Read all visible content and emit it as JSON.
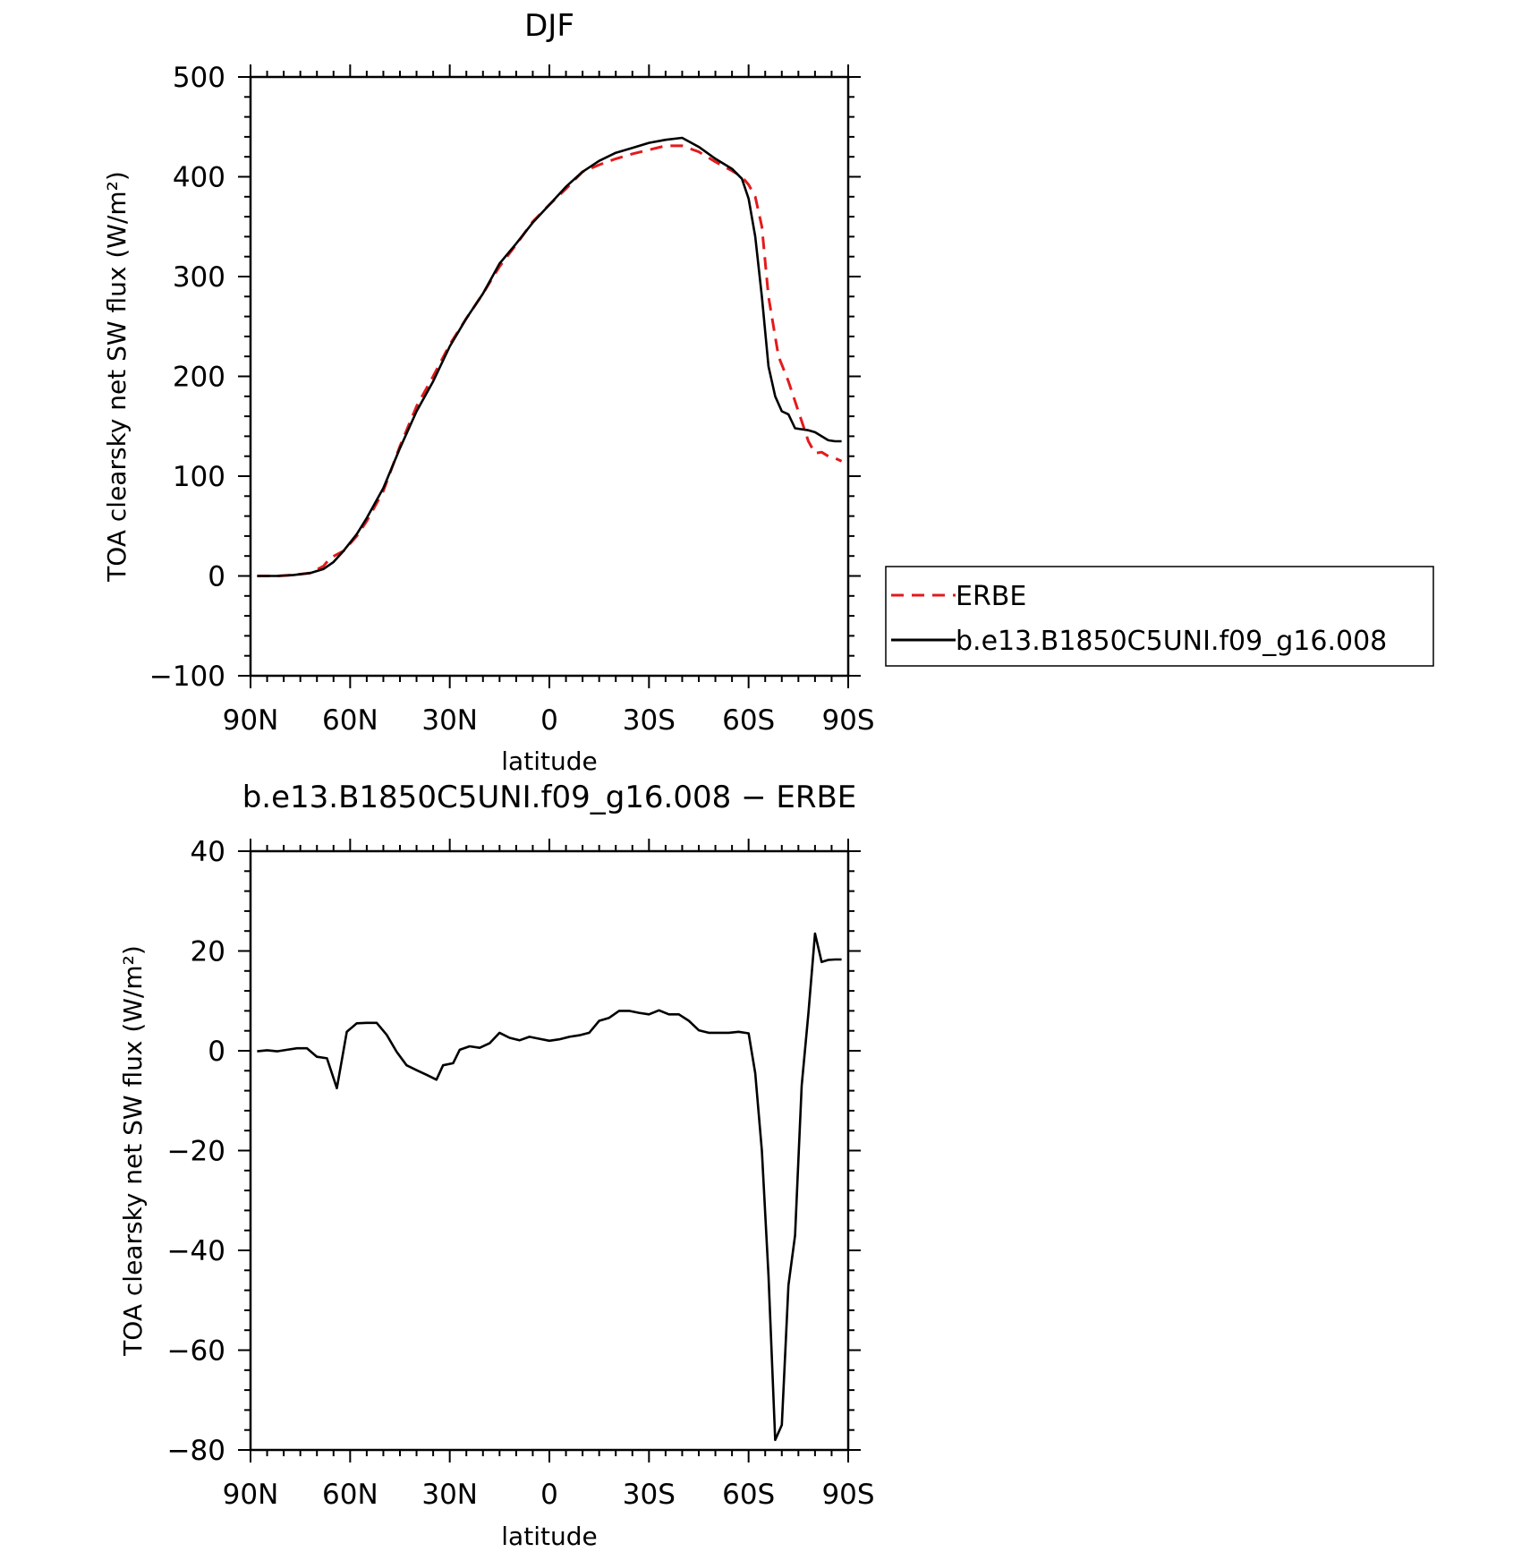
{
  "chart_data": [
    {
      "type": "line",
      "title": "DJF",
      "xlabel": "latitude",
      "ylabel": "TOA clearsky net SW flux (W/m²)",
      "xlim": [
        90,
        -90
      ],
      "ylim": [
        -100,
        500
      ],
      "x_ticks": [
        {
          "value": 90,
          "label": "90N"
        },
        {
          "value": 60,
          "label": "60N"
        },
        {
          "value": 30,
          "label": "30N"
        },
        {
          "value": 0,
          "label": "0"
        },
        {
          "value": -30,
          "label": "30S"
        },
        {
          "value": -60,
          "label": "60S"
        },
        {
          "value": -90,
          "label": "90S"
        }
      ],
      "y_ticks": [
        {
          "value": 500,
          "label": "500"
        },
        {
          "value": 400,
          "label": "400"
        },
        {
          "value": 300,
          "label": "300"
        },
        {
          "value": 200,
          "label": "200"
        },
        {
          "value": 100,
          "label": "100"
        },
        {
          "value": 0,
          "label": "0"
        },
        {
          "value": -100,
          "label": "−100"
        }
      ],
      "legend": {
        "placement": "right",
        "entries": [
          {
            "label": "ERBE",
            "color": "#e31a1c",
            "dashed": true
          },
          {
            "label": "b.e13.B1850C5UNI.f09_g16.008",
            "color": "#000000",
            "dashed": false
          }
        ]
      },
      "series": [
        {
          "name": "ERBE",
          "color": "#e31a1c",
          "dashed": true,
          "x": [
            88,
            82,
            77,
            72,
            68,
            66,
            62,
            58,
            55,
            50,
            45,
            40,
            35,
            30,
            25,
            20,
            15,
            10,
            5,
            0,
            -5,
            -10,
            -15,
            -20,
            -25,
            -30,
            -35,
            -40,
            -45,
            -50,
            -55,
            -58,
            -60,
            -62,
            -64,
            -66,
            -69,
            -72,
            -75,
            -78,
            -80,
            -82,
            -84,
            -86,
            -88
          ],
          "y": [
            0,
            0,
            1,
            3,
            10,
            18,
            25,
            40,
            55,
            85,
            130,
            170,
            200,
            232,
            258,
            283,
            310,
            332,
            355,
            372,
            388,
            405,
            412,
            418,
            423,
            427,
            431,
            431,
            425,
            415,
            406,
            400,
            392,
            380,
            350,
            280,
            220,
            195,
            165,
            135,
            123,
            124,
            120,
            118,
            115
          ]
        },
        {
          "name": "b.e13.B1850C5UNI.f09_g16.008",
          "color": "#000000",
          "dashed": false,
          "x": [
            88,
            82,
            77,
            72,
            68,
            65,
            62,
            58,
            55,
            50,
            45,
            40,
            35,
            30,
            25,
            20,
            15,
            10,
            5,
            0,
            -5,
            -10,
            -15,
            -20,
            -25,
            -30,
            -35,
            -40,
            -45,
            -50,
            -55,
            -58,
            -60,
            -62,
            -64,
            -66,
            -68,
            -70,
            -72,
            -74,
            -76,
            -78,
            -80,
            -82,
            -84,
            -86,
            -88
          ],
          "y": [
            0,
            0,
            1,
            3,
            7,
            14,
            25,
            42,
            58,
            88,
            128,
            165,
            195,
            230,
            258,
            283,
            313,
            333,
            354,
            372,
            390,
            405,
            416,
            424,
            429,
            434,
            437,
            439,
            430,
            418,
            408,
            398,
            378,
            340,
            280,
            210,
            180,
            165,
            162,
            148,
            147,
            146,
            144,
            140,
            136,
            135,
            135
          ]
        }
      ]
    },
    {
      "type": "line",
      "title": "b.e13.B1850C5UNI.f09_g16.008 − ERBE",
      "xlabel": "latitude",
      "ylabel": "TOA clearsky net SW flux (W/m²)",
      "xlim": [
        90,
        -90
      ],
      "ylim": [
        -80,
        40
      ],
      "x_ticks": [
        {
          "value": 90,
          "label": "90N"
        },
        {
          "value": 60,
          "label": "60N"
        },
        {
          "value": 30,
          "label": "30N"
        },
        {
          "value": 0,
          "label": "0"
        },
        {
          "value": -30,
          "label": "30S"
        },
        {
          "value": -60,
          "label": "60S"
        },
        {
          "value": -90,
          "label": "90S"
        }
      ],
      "y_ticks": [
        {
          "value": 40,
          "label": "40"
        },
        {
          "value": 20,
          "label": "20"
        },
        {
          "value": 0,
          "label": "0"
        },
        {
          "value": -20,
          "label": "−20"
        },
        {
          "value": -40,
          "label": "−40"
        },
        {
          "value": -60,
          "label": "−60"
        },
        {
          "value": -80,
          "label": "−80"
        }
      ],
      "series": [
        {
          "color": "#000000",
          "dashed": false,
          "x": [
            88,
            85,
            82,
            79,
            76,
            73,
            70,
            67,
            64,
            61,
            58,
            55,
            52,
            49,
            46,
            43,
            40,
            37,
            34,
            32,
            29,
            27,
            24,
            21,
            18,
            15,
            12,
            9,
            6,
            3,
            0,
            -3,
            -6,
            -9,
            -12,
            -15,
            -18,
            -21,
            -24,
            -27,
            -30,
            -33,
            -36,
            -39,
            -42,
            -45,
            -48,
            -51,
            -54,
            -57,
            -60,
            -62,
            -64,
            -66,
            -68,
            -70,
            -72,
            -74,
            -76,
            -78,
            -80,
            -82,
            -84,
            -86,
            -88
          ],
          "y": [
            -0.1,
            0.1,
            -0.1,
            0.2,
            0.5,
            0.5,
            -1.2,
            -1.5,
            -7.5,
            3.8,
            5.5,
            5.6,
            5.6,
            3.2,
            -0.2,
            -2.9,
            -3.9,
            -4.8,
            -5.8,
            -2.9,
            -2.5,
            0.2,
            0.9,
            0.6,
            1.5,
            3.6,
            2.6,
            2.1,
            2.8,
            2.4,
            2.0,
            2.3,
            2.8,
            3.1,
            3.6,
            6.0,
            6.6,
            8.0,
            8.0,
            7.6,
            7.3,
            8.1,
            7.3,
            7.3,
            6.0,
            4.1,
            3.6,
            3.6,
            3.6,
            3.8,
            3.5,
            -4.5,
            -20.0,
            -45.0,
            -78.0,
            -75.0,
            -47.0,
            -37.0,
            -7.0,
            7.5,
            23.5,
            17.8,
            18.2,
            18.3,
            18.3
          ]
        }
      ]
    }
  ]
}
